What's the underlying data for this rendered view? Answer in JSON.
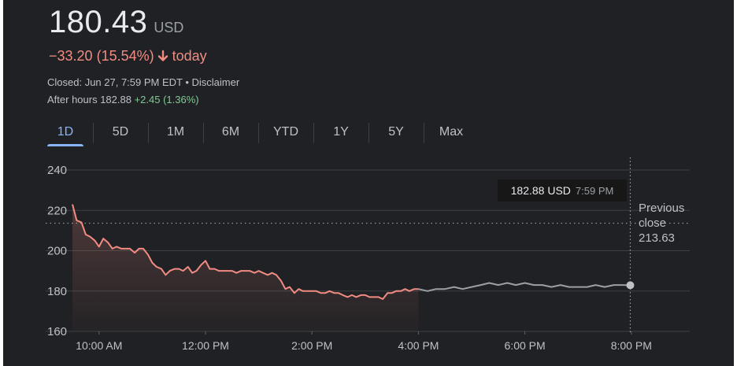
{
  "quote": {
    "price": "180.43",
    "currency": "USD",
    "change": "−33.20",
    "change_pct": "(15.54%)",
    "direction_arrow": "🢓",
    "period": "today",
    "closed_line": "Closed: Jun 27, 7:59 PM EDT • Disclaimer",
    "after_hours_label": "After hours 182.88",
    "after_hours_change": "+2.45 (1.36%)"
  },
  "tabs": [
    {
      "label": "1D",
      "active": true
    },
    {
      "label": "5D"
    },
    {
      "label": "1M"
    },
    {
      "label": "6M"
    },
    {
      "label": "YTD"
    },
    {
      "label": "1Y"
    },
    {
      "label": "5Y"
    },
    {
      "label": "Max"
    }
  ],
  "tooltip": {
    "price": "182.88 USD",
    "time": "7:59 PM"
  },
  "previous_close": {
    "line1": "Previous",
    "line2": "close",
    "value": "213.63"
  },
  "colors": {
    "background": "#202124",
    "negative": "#f28b82",
    "positive": "#81c995",
    "accent": "#8ab4f8",
    "after_hours_line": "#9aa0a6"
  },
  "chart_data": {
    "type": "line",
    "x_ticks": [
      "10:00 AM",
      "12:00 PM",
      "2:00 PM",
      "4:00 PM",
      "6:00 PM",
      "8:00 PM"
    ],
    "y_ticks": [
      "240",
      "220",
      "200",
      "180",
      "160"
    ],
    "ylim": [
      160,
      240
    ],
    "x_range_hours": [
      9.5,
      20.5
    ],
    "previous_close": 213.63,
    "series": [
      {
        "session": "regular",
        "color": "#f28b82",
        "x": [
          9.5,
          9.58,
          9.67,
          9.75,
          9.83,
          9.92,
          10.0,
          10.08,
          10.17,
          10.25,
          10.33,
          10.42,
          10.5,
          10.58,
          10.67,
          10.75,
          10.83,
          10.92,
          11.0,
          11.08,
          11.17,
          11.25,
          11.33,
          11.42,
          11.5,
          11.58,
          11.67,
          11.75,
          11.83,
          11.92,
          12.0,
          12.08,
          12.17,
          12.25,
          12.33,
          12.42,
          12.5,
          12.58,
          12.67,
          12.75,
          12.83,
          12.92,
          13.0,
          13.08,
          13.17,
          13.25,
          13.33,
          13.42,
          13.5,
          13.58,
          13.67,
          13.75,
          13.83,
          13.92,
          14.0,
          14.08,
          14.17,
          14.25,
          14.33,
          14.42,
          14.5,
          14.58,
          14.67,
          14.75,
          14.83,
          14.92,
          15.0,
          15.08,
          15.17,
          15.25,
          15.33,
          15.42,
          15.5,
          15.58,
          15.67,
          15.75,
          15.83,
          15.92,
          16.0
        ],
        "y": [
          223,
          215,
          214,
          208,
          207,
          205,
          202,
          206,
          204,
          201,
          202,
          201,
          201,
          201,
          199,
          201,
          201,
          198,
          194,
          192,
          191,
          188,
          190,
          191,
          191,
          190,
          192,
          189,
          190,
          193,
          195,
          191,
          191,
          190,
          190,
          190,
          190,
          189,
          190,
          190,
          190,
          189,
          190,
          189,
          188,
          189,
          188,
          185,
          181,
          182,
          179,
          181,
          180,
          180,
          180,
          180,
          179,
          179,
          180,
          179,
          179,
          178,
          177,
          178,
          177,
          178,
          178,
          177,
          177,
          177,
          176,
          179,
          179,
          180,
          180,
          181,
          180,
          181,
          181
        ]
      },
      {
        "session": "after_hours",
        "color": "#9aa0a6",
        "x": [
          16.0,
          16.17,
          16.33,
          16.5,
          16.67,
          16.83,
          17.0,
          17.17,
          17.33,
          17.5,
          17.67,
          17.83,
          18.0,
          18.17,
          18.33,
          18.5,
          18.67,
          18.83,
          19.0,
          19.17,
          19.33,
          19.5,
          19.67,
          19.83,
          19.98
        ],
        "y": [
          181,
          180,
          181,
          181,
          182,
          181,
          182,
          183,
          184,
          183,
          184,
          183,
          184,
          183,
          183,
          182,
          183,
          182,
          182,
          182,
          183,
          182,
          183,
          183,
          182.88
        ]
      }
    ]
  }
}
